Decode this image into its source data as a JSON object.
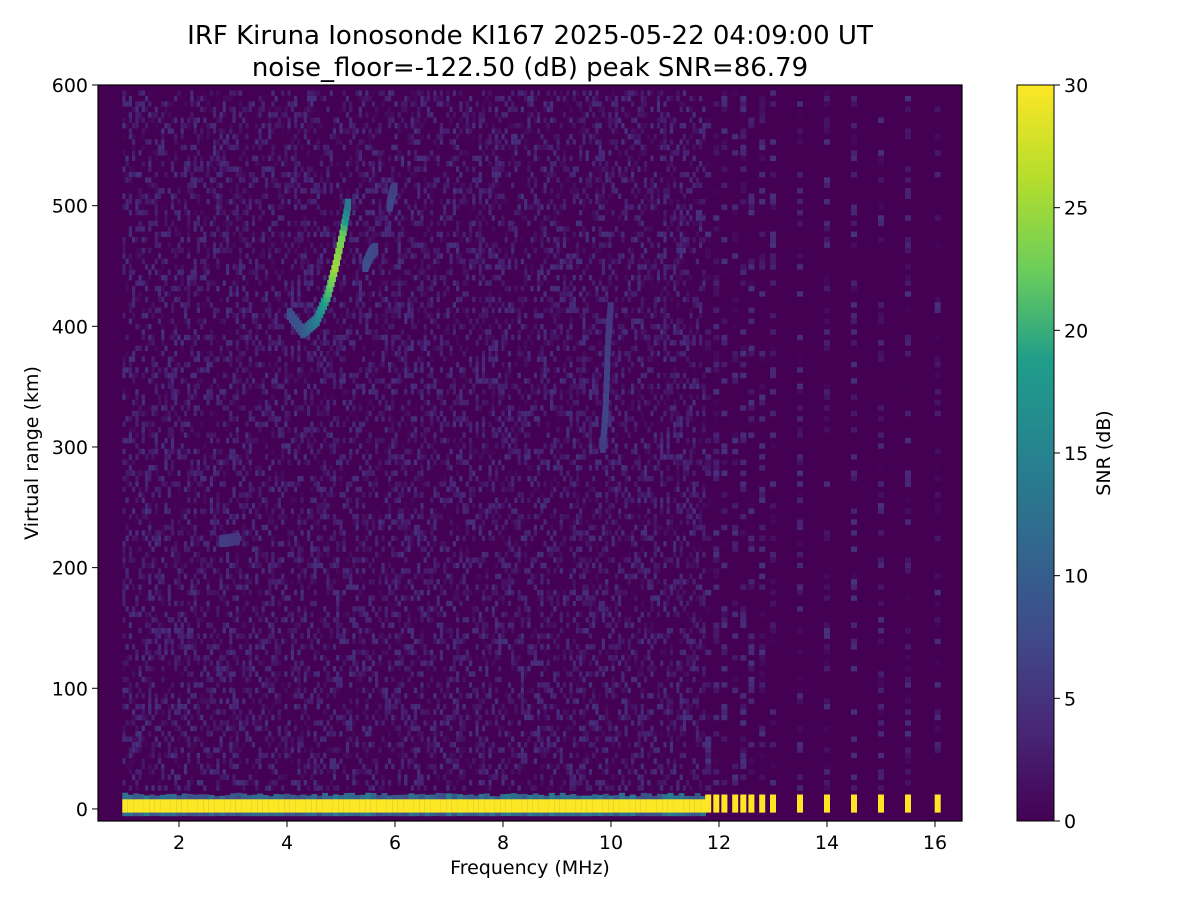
{
  "chart_data": {
    "type": "heatmap",
    "title": "IRF Kiruna Ionosonde KI167 2025-05-22 04:09:00  UT",
    "subtitle": "noise_floor=-122.50 (dB) peak SNR=86.79",
    "xlabel": "Frequency (MHz)",
    "ylabel": "Virtual range (km)",
    "xlim": [
      0.5,
      16.5
    ],
    "ylim": [
      -10,
      600
    ],
    "xticks": [
      2,
      4,
      6,
      8,
      10,
      12,
      14,
      16
    ],
    "yticks": [
      0,
      100,
      200,
      300,
      400,
      500,
      600
    ],
    "grid": false,
    "colorbar": {
      "label": "SNR (dB)",
      "range": [
        0,
        30
      ],
      "ticks": [
        0,
        5,
        10,
        15,
        20,
        25,
        30
      ],
      "colormap": "viridis"
    },
    "data_frequency_range_mhz": [
      0.95,
      16.2
    ],
    "ground_echo": {
      "range_km": 3,
      "continuous_freq_mhz": [
        0.95,
        11.7
      ],
      "snr_db": 30,
      "discrete_freqs_mhz": [
        11.8,
        11.95,
        12.1,
        12.3,
        12.45,
        12.6,
        12.8,
        13.0,
        13.5,
        14.0,
        14.5,
        15.0,
        15.5,
        16.05
      ]
    },
    "traces": [
      {
        "freq_mhz": [
          4.05,
          4.3,
          4.55,
          4.75,
          4.9,
          5.05,
          5.15
        ],
        "range_km": [
          410,
          395,
          405,
          425,
          450,
          480,
          505
        ],
        "snr_db": [
          8,
          9,
          14,
          20,
          25,
          22,
          12
        ]
      },
      {
        "freq_mhz": [
          5.45,
          5.55,
          5.65
        ],
        "range_km": [
          450,
          460,
          465
        ],
        "snr_db": [
          8,
          8,
          7
        ]
      },
      {
        "freq_mhz": [
          5.9,
          5.95,
          6.0
        ],
        "range_km": [
          500,
          510,
          515
        ],
        "snr_db": [
          7,
          7,
          6
        ]
      },
      {
        "freq_mhz": [
          9.85,
          9.9,
          9.95,
          10.0
        ],
        "range_km": [
          300,
          330,
          390,
          420
        ],
        "snr_db": [
          6,
          7,
          6,
          5
        ]
      },
      {
        "freq_mhz": [
          2.8,
          2.95,
          3.1
        ],
        "range_km": [
          222,
          223,
          224
        ],
        "snr_db": [
          6,
          6,
          5
        ]
      }
    ],
    "background_noise_snr_db": [
      0,
      5
    ]
  },
  "colors": {
    "viridis_stops": [
      "#440154",
      "#482777",
      "#3f4a8a",
      "#31678e",
      "#26838f",
      "#1f9d8a",
      "#6cce5a",
      "#b6de2b",
      "#fde725"
    ]
  }
}
